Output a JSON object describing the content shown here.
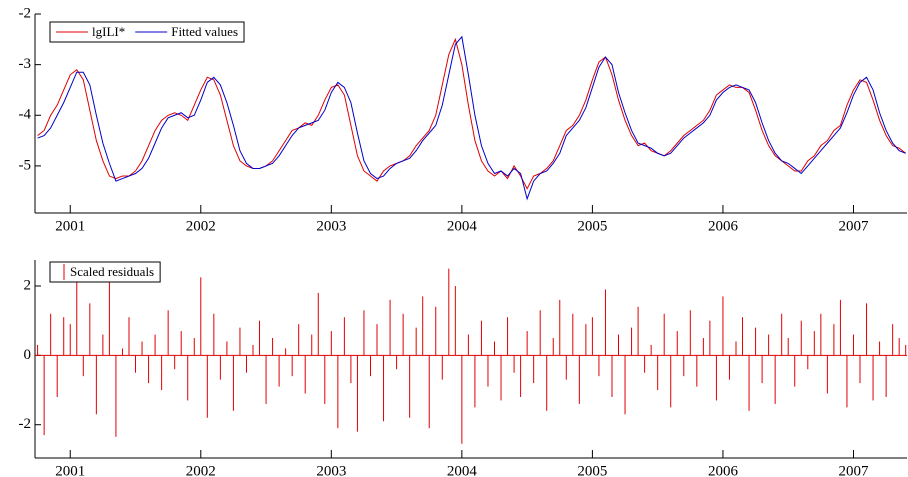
{
  "chart_data": [
    {
      "type": "line",
      "x": [
        2000.75,
        2000.8,
        2000.85,
        2000.9,
        2000.95,
        2001.0,
        2001.05,
        2001.1,
        2001.15,
        2001.2,
        2001.25,
        2001.3,
        2001.35,
        2001.4,
        2001.45,
        2001.5,
        2001.55,
        2001.6,
        2001.65,
        2001.7,
        2001.75,
        2001.8,
        2001.85,
        2001.9,
        2001.95,
        2002.0,
        2002.05,
        2002.1,
        2002.15,
        2002.2,
        2002.25,
        2002.3,
        2002.35,
        2002.4,
        2002.45,
        2002.5,
        2002.55,
        2002.6,
        2002.65,
        2002.7,
        2002.75,
        2002.8,
        2002.85,
        2002.9,
        2002.95,
        2003.0,
        2003.05,
        2003.1,
        2003.15,
        2003.2,
        2003.25,
        2003.3,
        2003.35,
        2003.4,
        2003.45,
        2003.5,
        2003.55,
        2003.6,
        2003.65,
        2003.7,
        2003.75,
        2003.8,
        2003.85,
        2003.9,
        2003.95,
        2004.0,
        2004.05,
        2004.1,
        2004.15,
        2004.2,
        2004.25,
        2004.3,
        2004.35,
        2004.4,
        2004.45,
        2004.5,
        2004.55,
        2004.6,
        2004.65,
        2004.7,
        2004.75,
        2004.8,
        2004.85,
        2004.9,
        2004.95,
        2005.0,
        2005.05,
        2005.1,
        2005.15,
        2005.2,
        2005.25,
        2005.3,
        2005.35,
        2005.4,
        2005.45,
        2005.5,
        2005.55,
        2005.6,
        2005.65,
        2005.7,
        2005.75,
        2005.8,
        2005.85,
        2005.9,
        2005.95,
        2006.0,
        2006.05,
        2006.1,
        2006.15,
        2006.2,
        2006.25,
        2006.3,
        2006.35,
        2006.4,
        2006.45,
        2006.5,
        2006.55,
        2006.6,
        2006.65,
        2006.7,
        2006.75,
        2006.8,
        2006.85,
        2006.9,
        2006.95,
        2007.0,
        2007.05,
        2007.1,
        2007.15,
        2007.2,
        2007.25,
        2007.3,
        2007.35,
        2007.4
      ],
      "series": [
        {
          "name": "lgILI*",
          "color": "#e00000",
          "values": [
            -4.4,
            -4.3,
            -4.0,
            -3.8,
            -3.5,
            -3.2,
            -3.1,
            -3.3,
            -3.9,
            -4.5,
            -4.9,
            -5.2,
            -5.25,
            -5.2,
            -5.2,
            -5.1,
            -4.9,
            -4.6,
            -4.3,
            -4.1,
            -4.0,
            -3.95,
            -4.0,
            -4.1,
            -3.8,
            -3.5,
            -3.25,
            -3.3,
            -3.6,
            -4.1,
            -4.6,
            -4.9,
            -5.0,
            -5.05,
            -5.05,
            -5.0,
            -4.9,
            -4.7,
            -4.5,
            -4.3,
            -4.25,
            -4.15,
            -4.2,
            -4.0,
            -3.7,
            -3.45,
            -3.4,
            -3.6,
            -4.2,
            -4.8,
            -5.1,
            -5.2,
            -5.3,
            -5.1,
            -5.0,
            -4.95,
            -4.9,
            -4.8,
            -4.6,
            -4.45,
            -4.3,
            -4.0,
            -3.4,
            -2.8,
            -2.5,
            -3.0,
            -3.8,
            -4.5,
            -4.9,
            -5.1,
            -5.2,
            -5.1,
            -5.25,
            -5.0,
            -5.2,
            -5.45,
            -5.2,
            -5.15,
            -5.05,
            -4.9,
            -4.6,
            -4.3,
            -4.2,
            -4.0,
            -3.7,
            -3.3,
            -2.95,
            -2.85,
            -3.2,
            -3.7,
            -4.1,
            -4.4,
            -4.6,
            -4.55,
            -4.7,
            -4.75,
            -4.8,
            -4.7,
            -4.55,
            -4.4,
            -4.3,
            -4.2,
            -4.1,
            -3.9,
            -3.6,
            -3.5,
            -3.4,
            -3.45,
            -3.45,
            -3.55,
            -3.9,
            -4.3,
            -4.6,
            -4.8,
            -4.9,
            -5.0,
            -5.1,
            -5.1,
            -4.9,
            -4.8,
            -4.6,
            -4.5,
            -4.3,
            -4.2,
            -3.8,
            -3.5,
            -3.3,
            -3.35,
            -3.7,
            -4.1,
            -4.4,
            -4.6,
            -4.65,
            -4.75
          ]
        },
        {
          "name": "Fitted values",
          "color": "#0000cc",
          "values": [
            -4.45,
            -4.4,
            -4.25,
            -4.0,
            -3.75,
            -3.45,
            -3.15,
            -3.15,
            -3.4,
            -4.0,
            -4.55,
            -4.95,
            -5.3,
            -5.25,
            -5.2,
            -5.15,
            -5.05,
            -4.85,
            -4.55,
            -4.25,
            -4.05,
            -4.0,
            -3.95,
            -4.05,
            -4.0,
            -3.7,
            -3.35,
            -3.25,
            -3.4,
            -3.75,
            -4.2,
            -4.7,
            -4.95,
            -5.05,
            -5.05,
            -5.0,
            -4.95,
            -4.8,
            -4.6,
            -4.4,
            -4.25,
            -4.2,
            -4.15,
            -4.1,
            -3.9,
            -3.55,
            -3.35,
            -3.45,
            -3.75,
            -4.35,
            -4.9,
            -5.15,
            -5.25,
            -5.2,
            -5.05,
            -4.95,
            -4.9,
            -4.85,
            -4.7,
            -4.5,
            -4.35,
            -4.2,
            -3.8,
            -3.2,
            -2.6,
            -2.45,
            -3.2,
            -4.0,
            -4.6,
            -4.95,
            -5.15,
            -5.1,
            -5.2,
            -5.05,
            -5.15,
            -5.65,
            -5.3,
            -5.15,
            -5.1,
            -4.95,
            -4.75,
            -4.4,
            -4.25,
            -4.1,
            -3.85,
            -3.45,
            -3.05,
            -2.85,
            -3.0,
            -3.55,
            -3.95,
            -4.3,
            -4.55,
            -4.6,
            -4.65,
            -4.75,
            -4.8,
            -4.75,
            -4.6,
            -4.45,
            -4.35,
            -4.25,
            -4.15,
            -4.0,
            -3.7,
            -3.55,
            -3.45,
            -3.4,
            -3.45,
            -3.5,
            -3.75,
            -4.15,
            -4.5,
            -4.75,
            -4.9,
            -4.95,
            -5.05,
            -5.15,
            -5.0,
            -4.85,
            -4.7,
            -4.55,
            -4.4,
            -4.25,
            -3.95,
            -3.6,
            -3.35,
            -3.25,
            -3.5,
            -3.95,
            -4.3,
            -4.55,
            -4.7,
            -4.75
          ]
        }
      ],
      "xlim": [
        2000.73,
        2007.41
      ],
      "xticks": [
        2001,
        2002,
        2003,
        2004,
        2005,
        2006,
        2007
      ],
      "ylim": [
        -5.93,
        -2
      ],
      "yticks": [
        -5,
        -4,
        -3,
        -2
      ],
      "legend": "upper left"
    },
    {
      "type": "bar",
      "x": [
        2000.75,
        2000.8,
        2000.85,
        2000.9,
        2000.95,
        2001.0,
        2001.05,
        2001.1,
        2001.15,
        2001.2,
        2001.25,
        2001.3,
        2001.35,
        2001.4,
        2001.45,
        2001.5,
        2001.55,
        2001.6,
        2001.65,
        2001.7,
        2001.75,
        2001.8,
        2001.85,
        2001.9,
        2001.95,
        2002.0,
        2002.05,
        2002.1,
        2002.15,
        2002.2,
        2002.25,
        2002.3,
        2002.35,
        2002.4,
        2002.45,
        2002.5,
        2002.55,
        2002.6,
        2002.65,
        2002.7,
        2002.75,
        2002.8,
        2002.85,
        2002.9,
        2002.95,
        2003.0,
        2003.05,
        2003.1,
        2003.15,
        2003.2,
        2003.25,
        2003.3,
        2003.35,
        2003.4,
        2003.45,
        2003.5,
        2003.55,
        2003.6,
        2003.65,
        2003.7,
        2003.75,
        2003.8,
        2003.85,
        2003.9,
        2003.95,
        2004.0,
        2004.05,
        2004.1,
        2004.15,
        2004.2,
        2004.25,
        2004.3,
        2004.35,
        2004.4,
        2004.45,
        2004.5,
        2004.55,
        2004.6,
        2004.65,
        2004.7,
        2004.75,
        2004.8,
        2004.85,
        2004.9,
        2004.95,
        2005.0,
        2005.05,
        2005.1,
        2005.15,
        2005.2,
        2005.25,
        2005.3,
        2005.35,
        2005.4,
        2005.45,
        2005.5,
        2005.55,
        2005.6,
        2005.65,
        2005.7,
        2005.75,
        2005.8,
        2005.85,
        2005.9,
        2005.95,
        2006.0,
        2006.05,
        2006.1,
        2006.15,
        2006.2,
        2006.25,
        2006.3,
        2006.35,
        2006.4,
        2006.45,
        2006.5,
        2006.55,
        2006.6,
        2006.65,
        2006.7,
        2006.75,
        2006.8,
        2006.85,
        2006.9,
        2006.95,
        2007.0,
        2007.05,
        2007.1,
        2007.15,
        2007.2,
        2007.25,
        2007.3,
        2007.35,
        2007.4
      ],
      "series": [
        {
          "name": "Scaled residuals",
          "color": "#e00000",
          "values": [
            0.3,
            -2.3,
            1.2,
            -1.2,
            1.1,
            0.9,
            2.35,
            -0.6,
            1.5,
            -1.7,
            0.6,
            2.3,
            -2.35,
            0.2,
            1.1,
            -0.5,
            0.4,
            -0.8,
            0.6,
            -1.0,
            1.3,
            -0.4,
            0.7,
            -1.3,
            0.5,
            2.25,
            -1.8,
            1.2,
            -0.7,
            0.4,
            -1.6,
            0.8,
            -0.5,
            0.3,
            1.0,
            -1.4,
            0.5,
            -0.9,
            0.2,
            -0.6,
            0.9,
            -1.1,
            0.6,
            1.8,
            -1.4,
            0.7,
            -2.1,
            1.1,
            -0.8,
            -2.2,
            1.3,
            -0.6,
            0.9,
            -1.9,
            1.6,
            -0.4,
            1.2,
            -1.8,
            0.8,
            1.7,
            -2.1,
            1.4,
            -0.7,
            2.5,
            2.0,
            -2.55,
            0.6,
            -1.5,
            1.0,
            -0.9,
            0.4,
            -1.3,
            1.1,
            -0.5,
            -1.2,
            0.7,
            -0.8,
            1.3,
            -1.6,
            0.5,
            1.6,
            -0.7,
            1.2,
            -1.4,
            0.9,
            1.1,
            -0.6,
            1.9,
            -1.2,
            0.6,
            -1.7,
            0.8,
            1.4,
            -0.5,
            0.3,
            -1.0,
            1.2,
            -1.5,
            0.7,
            -0.6,
            1.3,
            -0.9,
            0.5,
            1.0,
            -1.3,
            1.7,
            -0.7,
            0.4,
            1.1,
            -1.6,
            0.8,
            -0.8,
            0.6,
            -1.4,
            1.2,
            0.5,
            -0.9,
            1.0,
            -0.4,
            0.7,
            1.2,
            -1.1,
            0.9,
            1.6,
            -1.5,
            0.6,
            -0.8,
            1.5,
            -1.3,
            0.4,
            -1.2,
            0.9,
            0.5,
            0.3
          ]
        }
      ],
      "xlim": [
        2000.73,
        2007.41
      ],
      "xticks": [
        2001,
        2002,
        2003,
        2004,
        2005,
        2006,
        2007
      ],
      "ylim": [
        -2.96,
        2.75
      ],
      "yticks": [
        -2,
        0,
        2
      ],
      "legend": "upper left"
    }
  ]
}
